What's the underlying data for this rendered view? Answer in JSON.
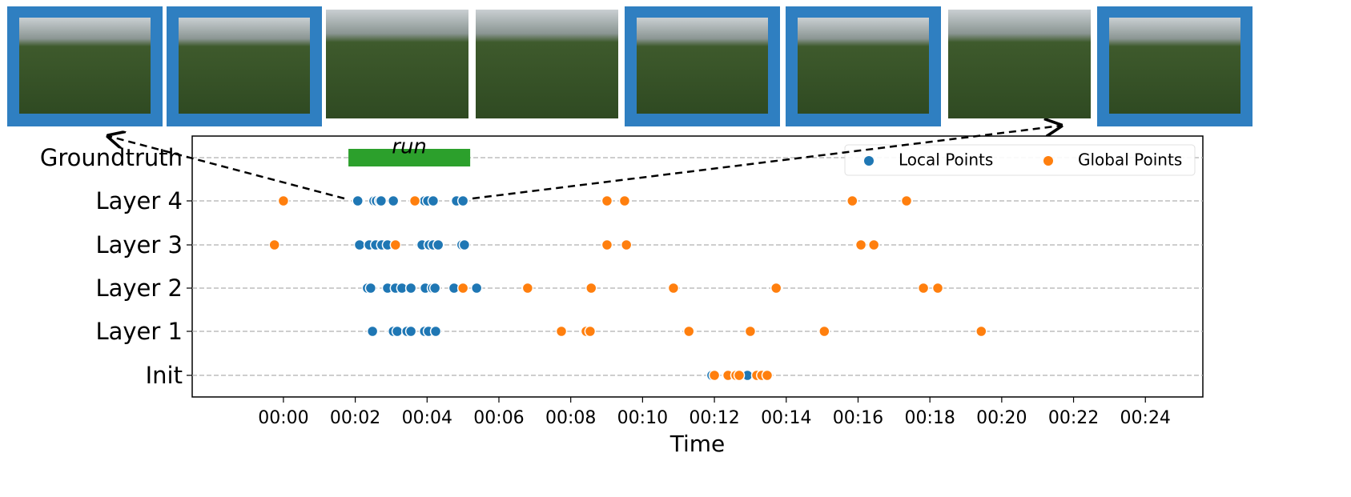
{
  "chart_data": {
    "type": "scatter",
    "xlabel": "Time",
    "categories": [
      "Groundtruth",
      "Layer 4",
      "Layer 3",
      "Layer 2",
      "Layer 1",
      "Init"
    ],
    "xlim": [
      -2.54,
      25.6
    ],
    "xticks": [
      {
        "value": 0,
        "label": "00:00"
      },
      {
        "value": 2,
        "label": "00:02"
      },
      {
        "value": 4,
        "label": "00:04"
      },
      {
        "value": 6,
        "label": "00:06"
      },
      {
        "value": 8,
        "label": "00:08"
      },
      {
        "value": 10,
        "label": "00:10"
      },
      {
        "value": 12,
        "label": "00:12"
      },
      {
        "value": 14,
        "label": "00:14"
      },
      {
        "value": 16,
        "label": "00:16"
      },
      {
        "value": 18,
        "label": "00:18"
      },
      {
        "value": 20,
        "label": "00:20"
      },
      {
        "value": 22,
        "label": "00:22"
      },
      {
        "value": 24,
        "label": "00:24"
      }
    ],
    "grid": true,
    "legend": "upper right",
    "groundtruth": {
      "label": "run",
      "start": 1.81,
      "end": 5.2,
      "color": "#2ca02c"
    },
    "series": [
      {
        "name": "Local Points",
        "color": "#1f77b4",
        "x": [
          null,
          [
            2.07,
            2.52,
            2.59,
            2.68,
            2.72,
            3.06,
            3.93,
            4.02,
            4.17,
            4.82,
            5.0
          ],
          [
            2.12,
            2.39,
            2.57,
            2.74,
            2.9,
            3.86,
            4.06,
            4.17,
            4.31,
            4.97,
            5.04
          ],
          [
            2.34,
            2.43,
            2.9,
            3.12,
            3.3,
            3.55,
            3.95,
            4.15,
            4.22,
            4.75,
            5.38
          ],
          [
            2.48,
            3.06,
            3.17,
            3.44,
            3.55,
            3.93,
            4.04,
            4.24
          ],
          [
            11.93,
            12.36,
            12.92
          ]
        ]
      },
      {
        "name": "Global Points",
        "color": "#ff7f0e",
        "x": [
          null,
          [
            0.0,
            3.66,
            9.01,
            9.5,
            15.84,
            17.35
          ],
          [
            -0.25,
            3.12,
            9.01,
            9.55,
            16.08,
            16.44
          ],
          [
            5.0,
            6.8,
            8.57,
            10.86,
            13.72,
            17.82,
            18.22
          ],
          [
            7.74,
            8.43,
            8.54,
            11.29,
            13.0,
            15.06,
            19.43
          ],
          [
            12.0,
            12.38,
            12.6,
            12.69,
            13.18,
            13.32,
            13.47
          ]
        ]
      }
    ]
  }
}
